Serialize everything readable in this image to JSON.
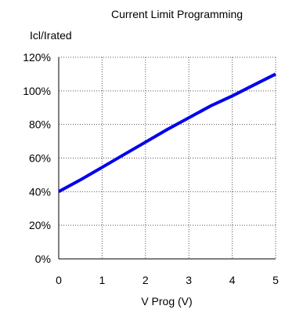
{
  "chart_data": {
    "type": "line",
    "title": "Current Limit Programming",
    "ylabel": "Icl/Irated",
    "xlabel": "V Prog (V)",
    "xlim": [
      0,
      5
    ],
    "ylim": [
      0,
      120
    ],
    "x_ticks": [
      0,
      1,
      2,
      3,
      4,
      5
    ],
    "x_tick_labels": [
      "0",
      "1",
      "2",
      "3",
      "4",
      "5"
    ],
    "y_ticks": [
      0,
      20,
      40,
      60,
      80,
      100,
      120
    ],
    "y_tick_labels": [
      "0%",
      "20%",
      "40%",
      "60%",
      "80%",
      "100%",
      "120%"
    ],
    "grid": true,
    "grid_style": "dotted",
    "series": [
      {
        "color": "#0000ee",
        "x": [
          0,
          0.5,
          1,
          1.5,
          2,
          2.5,
          3,
          3.5,
          4,
          4.5,
          5
        ],
        "values": [
          40,
          47,
          54.5,
          62,
          69.5,
          77,
          84,
          91,
          97,
          103.5,
          110
        ]
      }
    ]
  }
}
